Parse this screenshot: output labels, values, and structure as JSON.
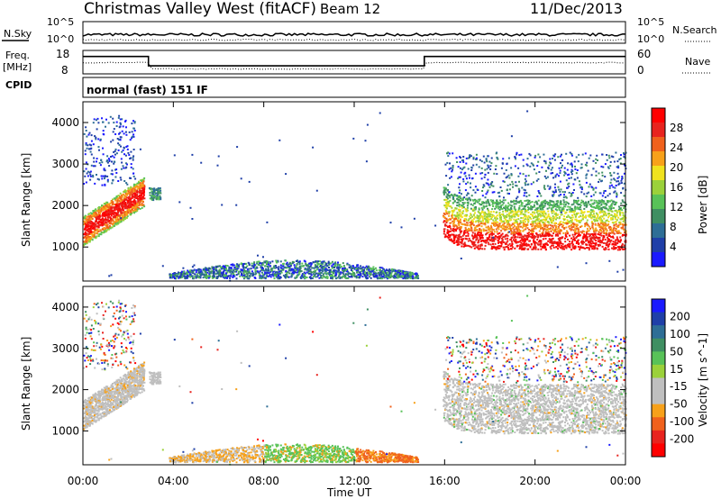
{
  "header": {
    "title": "Christmas Valley West (fitACF)",
    "beam": "Beam 12",
    "date": "11/Dec/2013"
  },
  "noise_panel": {
    "left_label": "N.Sky",
    "left_ticks": [
      "10^5",
      "10^0"
    ],
    "right_ticks": [
      "10^5",
      "10^0"
    ],
    "right_label": "N.Search"
  },
  "freq_panel": {
    "left_label_line1": "Freq.",
    "left_label_line2": "[MHz]",
    "left_ticks": [
      "18",
      "8"
    ],
    "right_ticks": [
      "60",
      "0"
    ],
    "right_label": "Nave",
    "cpid_label": "CPID",
    "cpid_value": "normal (fast) 151 IF"
  },
  "x_axis": {
    "label": "Time UT",
    "ticks": [
      "00:00",
      "04:00",
      "08:00",
      "12:00",
      "16:00",
      "20:00",
      "00:00"
    ]
  },
  "power_panel": {
    "ylabel": "Slant Range [km]",
    "yticks": [
      "4000",
      "3000",
      "2000",
      "1000"
    ],
    "colorbar_label": "Power [dB]",
    "colorbar_ticks": [
      "28",
      "24",
      "20",
      "16",
      "12",
      "8",
      "4"
    ],
    "colors": [
      "#1a1aff",
      "#1f3fa8",
      "#2e6e96",
      "#3f8f62",
      "#58c258",
      "#9bd13a",
      "#f0e21e",
      "#f7a11a",
      "#f0611c",
      "#e8231e",
      "#ff0000"
    ]
  },
  "velocity_panel": {
    "ylabel": "Slant Range [km]",
    "yticks": [
      "4000",
      "3000",
      "2000",
      "1000"
    ],
    "colorbar_label": "Velocity [m s^-1]",
    "colorbar_ticks": [
      "200",
      "100",
      "50",
      "15",
      "-15",
      "-50",
      "-100",
      "-200"
    ],
    "colors": [
      "#1a1aff",
      "#1f3fa8",
      "#2e6e96",
      "#3f8f62",
      "#58c258",
      "#9bd13a",
      "#bfbfbf",
      "#bfbfbf",
      "#f7a11a",
      "#f0611c",
      "#e8231e",
      "#ff0000"
    ]
  },
  "chart_data": {
    "type": "heatmap",
    "x_range_hours": [
      0,
      24
    ],
    "y_range_km": [
      180,
      4500
    ],
    "freq_steps": [
      {
        "from_hour": 0,
        "to_hour": 2.9,
        "freq_mhz": 16.5
      },
      {
        "from_hour": 2.9,
        "to_hour": 15.1,
        "freq_mhz": 10.7
      },
      {
        "from_hour": 15.1,
        "to_hour": 24,
        "freq_mhz": 16.5
      }
    ]
  }
}
